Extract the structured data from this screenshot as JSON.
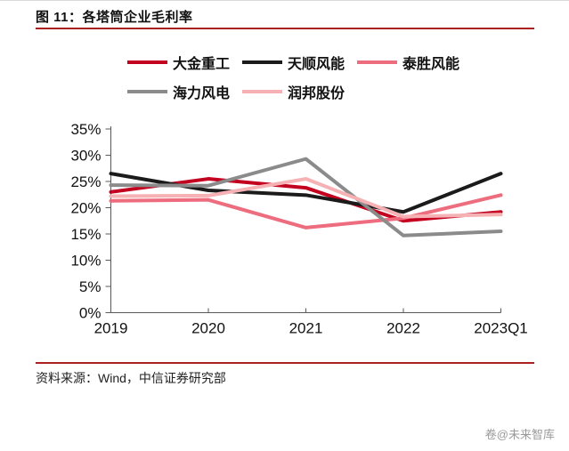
{
  "header": {
    "title": "图 11：各塔筒企业毛利率"
  },
  "footer": {
    "source": "资料来源：Wind，中信证券研究部"
  },
  "watermark": {
    "text": "卷@未来智库"
  },
  "colors": {
    "rule": "#a8201f",
    "axis": "#595959",
    "text": "#111111",
    "watermark_gray": "#9a9a9a"
  },
  "chart_data": {
    "type": "line",
    "title": "图 11：各塔筒企业毛利率",
    "categories": [
      "2019",
      "2020",
      "2021",
      "2022",
      "2023Q1"
    ],
    "xlabel": "",
    "ylabel": "毛利率",
    "unit": "%",
    "ylim": [
      0,
      35
    ],
    "ytick_step": 5,
    "ytick_labels": [
      "0%",
      "5%",
      "10%",
      "15%",
      "20%",
      "25%",
      "30%",
      "35%"
    ],
    "grid": false,
    "legend_position": "top",
    "series": [
      {
        "name": "大金重工",
        "color": "#c3001f",
        "values": [
          23.0,
          25.5,
          23.8,
          17.5,
          19.2
        ]
      },
      {
        "name": "天顺风能",
        "color": "#1b1b1b",
        "values": [
          26.5,
          23.3,
          22.4,
          19.2,
          26.5
        ]
      },
      {
        "name": "泰胜风能",
        "color": "#ed6c7d",
        "values": [
          21.3,
          21.5,
          16.2,
          18.0,
          22.4
        ]
      },
      {
        "name": "海力风电",
        "color": "#8b8b8b",
        "values": [
          24.3,
          24.2,
          29.3,
          14.7,
          15.5
        ]
      },
      {
        "name": "润邦股份",
        "color": "#f5b1b3",
        "values": [
          22.2,
          22.3,
          25.5,
          18.3,
          18.7
        ]
      }
    ]
  }
}
